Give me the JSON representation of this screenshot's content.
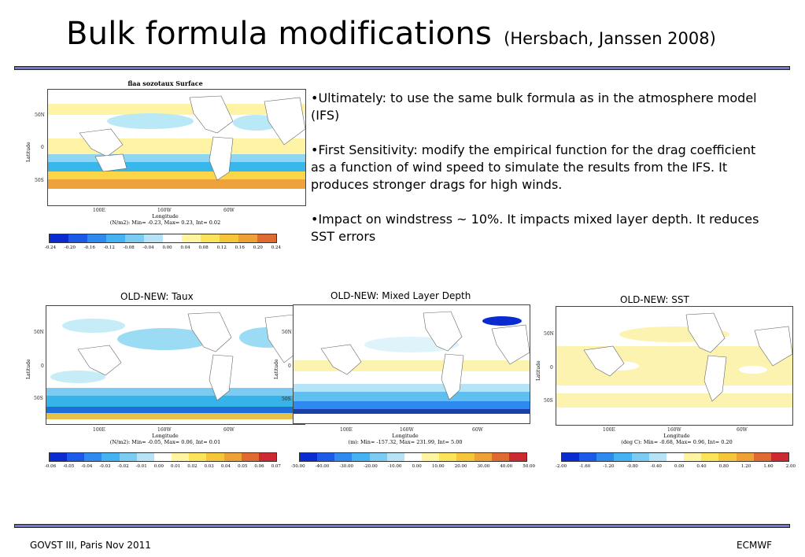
{
  "title": {
    "main": "Bulk formula modifications",
    "sub": "(Hersbach, Janssen 2008)"
  },
  "bullets": [
    "•Ultimately: to use the same bulk formula as in the atmosphere model (IFS)",
    "•First Sensitivity: modify the empirical function for the drag coefficient as a function of wind speed to simulate the results from the IFS. It produces stronger drags for high winds.",
    "•Impact on windstress ~ 10%. It impacts mixed layer depth. It  reduces SST errors"
  ],
  "colors": {
    "rule": "#6b78d6"
  },
  "maps": {
    "top": {
      "title": "flaa sozotaux Surface",
      "lat_ticks": [
        "50N",
        "0",
        "50S"
      ],
      "lon_ticks": [
        "100E",
        "160W",
        "60W"
      ],
      "lat_label": "Latitude",
      "lon_label": "Longitude",
      "stats": "(N/m2): Min= -0.23, Max= 0.23, Int= 0.02",
      "scale": [
        "-0.24",
        "-0.20",
        "-0.16",
        "-0.12",
        "-0.08",
        "-0.04",
        "0.00",
        "0.04",
        "0.08",
        "0.12",
        "0.16",
        "0.20",
        "0.24"
      ]
    },
    "taux": {
      "panel_title": "OLD-NEW: Taux",
      "lat_ticks": [
        "50N",
        "0",
        "50S"
      ],
      "lon_ticks": [
        "100E",
        "160W",
        "60W"
      ],
      "lat_label": "Latitude",
      "lon_label": "Longitude",
      "stats": "(N/m2): Min= -0.05, Max= 0.06, Int= 0.01",
      "scale": [
        "-0.06",
        "-0.05",
        "-0.04",
        "-0.03",
        "-0.02",
        "-0.01",
        "0.00",
        "0.01",
        "0.02",
        "0.03",
        "0.04",
        "0.05",
        "0.06",
        "0.07"
      ]
    },
    "mld": {
      "panel_title": "OLD-NEW: Mixed Layer Depth",
      "lat_ticks": [
        "50N",
        "0",
        "50S"
      ],
      "lon_ticks": [
        "100E",
        "160W",
        "60W"
      ],
      "lat_label": "Latitude",
      "lon_label": "Longitude",
      "stats": "(m): Min= -157.32, Max= 231.99, Int= 5.00",
      "scale": [
        "-50.00",
        "-40.00",
        "-30.00",
        "-20.00",
        "-10.00",
        "0.00",
        "10.00",
        "20.00",
        "30.00",
        "40.00",
        "50.00"
      ]
    },
    "sst": {
      "panel_title": "OLD-NEW: SST",
      "lat_ticks": [
        "50N",
        "0",
        "50S"
      ],
      "lon_ticks": [
        "100E",
        "160W",
        "60W"
      ],
      "lat_label": "Latitude",
      "lon_label": "Longitude",
      "stats": "(deg C): Min= -0.68, Max= 0.96, Int= 0.20",
      "scale": [
        "-2.00",
        "-1.60",
        "-1.20",
        "-0.80",
        "-0.40",
        "0.00",
        "0.40",
        "0.80",
        "1.20",
        "1.60",
        "2.00"
      ]
    }
  },
  "footer": {
    "left": "GOVST III,  Paris Nov 2011",
    "right": "ECMWF"
  }
}
